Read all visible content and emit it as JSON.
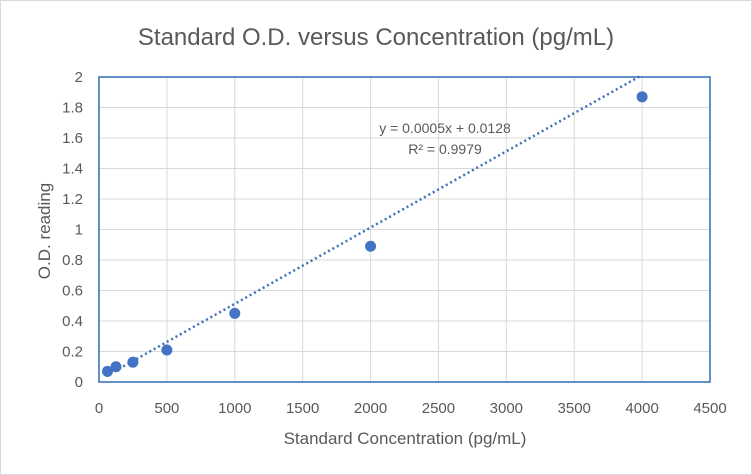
{
  "chart_data": {
    "type": "scatter",
    "title": "Standard O.D. versus Concentration (pg/mL)",
    "xlabel": "Standard Concentration (pg/mL)",
    "ylabel": "O.D. reading",
    "xlim": [
      0,
      4500
    ],
    "ylim": [
      0,
      2
    ],
    "x_ticks": [
      0,
      500,
      1000,
      1500,
      2000,
      2500,
      3000,
      3500,
      4000,
      4500
    ],
    "y_ticks": [
      0,
      0.2,
      0.4,
      0.6,
      0.8,
      1,
      1.2,
      1.4,
      1.6,
      1.8,
      2
    ],
    "x_tick_labels": [
      "0",
      "500",
      "1000",
      "1500",
      "2000",
      "2500",
      "3000",
      "3500",
      "4000",
      "4500"
    ],
    "y_tick_labels": [
      "0",
      "0.2",
      "0.4",
      "0.6",
      "0.8",
      "1",
      "1.2",
      "1.4",
      "1.6",
      "1.8",
      "2"
    ],
    "grid": true,
    "series": [
      {
        "x": [
          62.5,
          125,
          250,
          500,
          1000,
          2000,
          4000
        ],
        "y": [
          0.07,
          0.1,
          0.13,
          0.21,
          0.45,
          0.89,
          1.87
        ],
        "color": "#4472c4"
      }
    ],
    "trendline": {
      "type": "linear",
      "slope": 0.0005,
      "intercept": 0.0128,
      "x_range": [
        50,
        4000
      ],
      "equation_label": "y = 0.0005x + 0.0128",
      "r2_label": "R² = 0.9979",
      "color": "#3d6fb6"
    },
    "colors": {
      "border": "#2f6db5",
      "grid": "#d9d9d9",
      "text": "#595959"
    }
  }
}
